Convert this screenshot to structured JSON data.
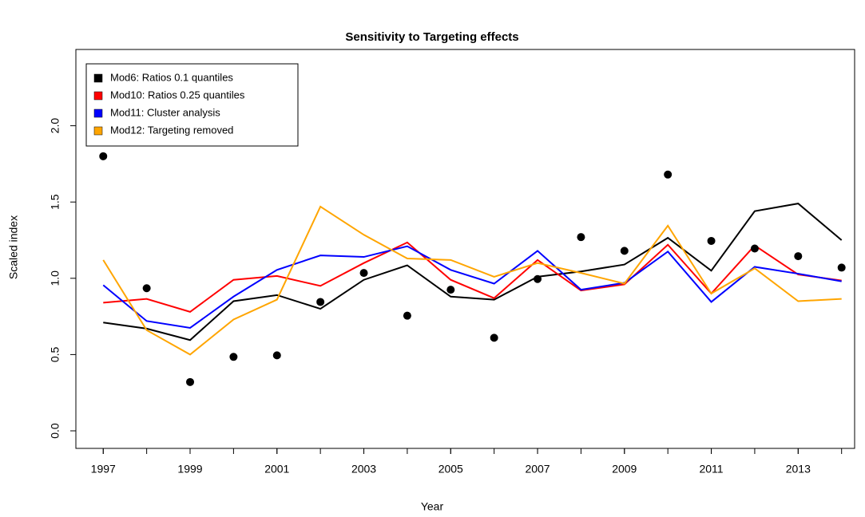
{
  "chart_data": {
    "type": "line",
    "title": "Sensitivity to Targeting effects",
    "xlabel": "Year",
    "ylabel": "Scaled index",
    "x": [
      1997,
      1998,
      1999,
      2000,
      2001,
      2002,
      2003,
      2004,
      2005,
      2006,
      2007,
      2008,
      2009,
      2010,
      2011,
      2012,
      2013,
      2014
    ],
    "points": {
      "color": "#000000",
      "values": [
        1.8,
        0.935,
        0.32,
        0.485,
        0.495,
        0.845,
        1.035,
        0.755,
        0.925,
        0.61,
        0.995,
        1.27,
        1.18,
        1.68,
        1.245,
        1.195,
        1.145,
        1.07
      ]
    },
    "series": [
      {
        "name": "Mod6: Ratios 0.1 quantiles",
        "color": "#000000",
        "values": [
          0.71,
          0.67,
          0.595,
          0.85,
          0.89,
          0.8,
          0.99,
          1.085,
          0.88,
          0.86,
          1.01,
          1.045,
          1.09,
          1.265,
          1.05,
          1.44,
          1.49,
          1.25
        ]
      },
      {
        "name": "Mod10: Ratios 0.25 quantiles",
        "color": "#ff0000",
        "values": [
          0.84,
          0.865,
          0.78,
          0.99,
          1.015,
          0.95,
          1.1,
          1.235,
          0.99,
          0.87,
          1.12,
          0.92,
          0.96,
          1.22,
          0.9,
          1.215,
          1.025,
          0.985
        ]
      },
      {
        "name": "Mod11: Cluster analysis",
        "color": "#0000ff",
        "values": [
          0.955,
          0.72,
          0.675,
          0.88,
          1.055,
          1.15,
          1.14,
          1.21,
          1.055,
          0.965,
          1.18,
          0.925,
          0.97,
          1.175,
          0.845,
          1.075,
          1.03,
          0.98
        ]
      },
      {
        "name": "Mod12: Targeting removed",
        "color": "#ffa500",
        "values": [
          1.12,
          0.66,
          0.5,
          0.73,
          0.86,
          1.47,
          1.285,
          1.13,
          1.12,
          1.01,
          1.1,
          1.035,
          0.965,
          1.345,
          0.9,
          1.065,
          0.85,
          0.865
        ]
      }
    ],
    "xlim": [
      1996.37,
      2014.3
    ],
    "ylim": [
      -0.115,
      2.5
    ],
    "xticks": [
      1997,
      1999,
      2001,
      2003,
      2005,
      2007,
      2009,
      2011,
      2013
    ],
    "yticks": [
      {
        "value": 0,
        "label": "0.0"
      },
      0.5,
      {
        "value": 1,
        "label": "1.0"
      },
      1.5,
      {
        "value": 2,
        "label": "2.0"
      }
    ],
    "legend": "top-left"
  }
}
